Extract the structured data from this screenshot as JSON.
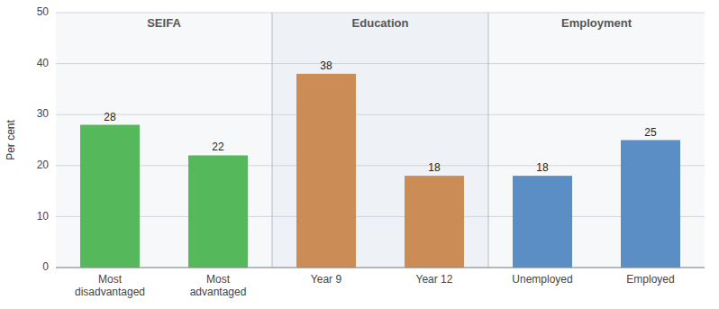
{
  "chart_data": {
    "type": "bar",
    "categories": [
      "Most\ndisadvantaged",
      "Most\nadvantaged",
      "Year 9",
      "Year 12",
      "Unemployed",
      "Employed"
    ],
    "values": [
      28,
      22,
      38,
      18,
      18,
      25
    ],
    "colors": [
      "#55b85a",
      "#55b85a",
      "#cc8c55",
      "#cc8c55",
      "#5b8ec4",
      "#5b8ec4"
    ],
    "y_label": "Per cent",
    "annotations": [
      "SEIFA",
      "Education",
      "Employment"
    ],
    "ylim": [
      0,
      50
    ],
    "yticks": [
      0,
      10,
      20,
      30,
      40,
      50
    ],
    "grid": true,
    "data_labels": true
  }
}
